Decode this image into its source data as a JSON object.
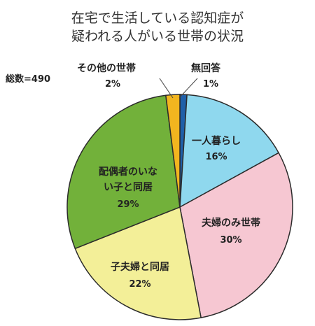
{
  "chart_data": {
    "type": "pie",
    "title": [
      "在宅で生活している認知症が",
      "疑われる人がいる世帯の状況"
    ],
    "total_label": "総数=490",
    "slices": [
      {
        "name": "無回答",
        "value": 1,
        "value_label": "1%",
        "color": "#1f5fa8"
      },
      {
        "name": "一人暮らし",
        "value": 16,
        "value_label": "16%",
        "color": "#8fd8ee"
      },
      {
        "name": "夫婦のみ世帯",
        "value": 30,
        "value_label": "30%",
        "color": "#f6c7d2"
      },
      {
        "name": "子夫婦と同居",
        "value": 22,
        "value_label": "22%",
        "color": "#f3ef98"
      },
      {
        "name": "配偶者のいない子と同居",
        "name_lines": [
          "配偶者のいな",
          "い子と同居"
        ],
        "value": 29,
        "value_label": "29%",
        "color": "#72b13a"
      },
      {
        "name": "その他の世帯",
        "value": 2,
        "value_label": "2%",
        "color": "#f2b51f"
      }
    ]
  }
}
